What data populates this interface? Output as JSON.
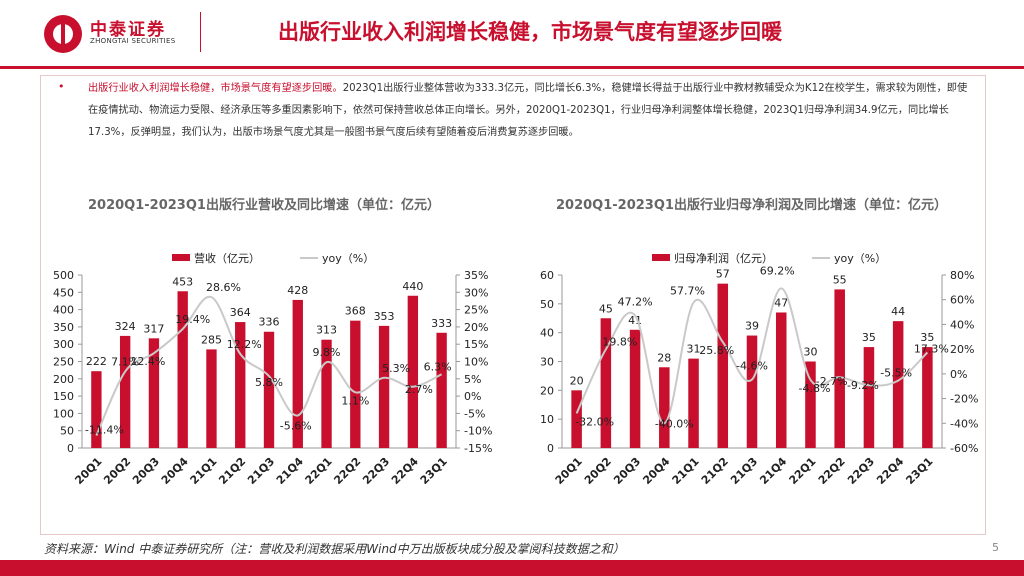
{
  "header": {
    "company_cn": "中泰证券",
    "company_en": "ZHONGTAI SECURITIES",
    "title": "出版行业收入利润增长稳健，市场景气度有望逐步回暖"
  },
  "summary": {
    "highlight": "出版行业收入利润增长稳健，市场景气度有望逐步回暖。",
    "body": "2023Q1出版行业整体营收为333.3亿元，同比增长6.3%，稳健增长得益于出版行业中教材教辅受众为K12在校学生，需求较为刚性，即使在疫情扰动、物流运力受限、经济承压等多重因素影响下，依然可保持营收总体正向增长。另外，2020Q1-2023Q1，行业归母净利润整体增长稳健，2023Q1归母净利润34.9亿元，同比增长17.3%，反弹明显，我们认为，出版市场景气度尤其是一般图书景气度后续有望随着疫后消费复苏逐步回暖。"
  },
  "chart_data": [
    {
      "type": "bar",
      "title": "2020Q1-2023Q1出版行业营收及同比增速（单位：亿元）",
      "categories": [
        "20Q1",
        "20Q2",
        "20Q3",
        "20Q4",
        "21Q1",
        "21Q2",
        "21Q3",
        "21Q4",
        "22Q1",
        "22Q2",
        "22Q3",
        "22Q4",
        "23Q1"
      ],
      "bar_series": {
        "name": "营收（亿元）",
        "values": [
          222,
          324,
          317,
          453,
          285,
          364,
          336,
          428,
          313,
          368,
          353,
          440,
          333
        ],
        "labels": [
          "222",
          "324",
          "317",
          "453",
          "285",
          "364",
          "336",
          "428",
          "313",
          "368",
          "353",
          "440",
          "333"
        ]
      },
      "line_series": {
        "name": "yoy（%）",
        "values": [
          -11.4,
          7.1,
          12.4,
          19.4,
          28.6,
          12.2,
          5.8,
          -5.6,
          9.8,
          1.1,
          5.3,
          2.7,
          6.3
        ],
        "labels": [
          "-11.4%",
          "7.1%",
          "12.4%",
          "19.4%",
          "28.6%",
          "12.2%",
          "5.8%",
          "-5.6%",
          "9.8%",
          "1.1%",
          "5.3%",
          "2.7%",
          "6.3%"
        ]
      },
      "ylim_left": [
        0,
        500
      ],
      "ylim_right": [
        -15,
        35
      ],
      "left_ticks": [
        "0",
        "50",
        "100",
        "150",
        "200",
        "250",
        "300",
        "350",
        "400",
        "450",
        "500"
      ],
      "right_ticks": [
        "-15%",
        "-10%",
        "-5%",
        "0%",
        "5%",
        "10%",
        "15%",
        "20%",
        "25%",
        "30%",
        "35%"
      ],
      "bar_color": "#c8102e",
      "line_color": "#c9c9c9"
    },
    {
      "type": "bar",
      "title": "2020Q1-2023Q1出版行业归母净利润及同比增速（单位：亿元）",
      "categories": [
        "20Q1",
        "20Q2",
        "20Q3",
        "20Q4",
        "21Q1",
        "21Q2",
        "21Q3",
        "21Q4",
        "22Q1",
        "22Q2",
        "22Q3",
        "22Q4",
        "23Q1"
      ],
      "bar_series": {
        "name": "归母净利润（亿元）",
        "values": [
          20,
          45,
          41,
          28,
          31,
          57,
          39,
          47,
          30,
          55,
          35,
          44,
          35
        ],
        "labels": [
          "20",
          "45",
          "41",
          "28",
          "31",
          "57",
          "39",
          "47",
          "30",
          "55",
          "35",
          "44",
          "35"
        ]
      },
      "line_series": {
        "name": "yoy（%）",
        "values": [
          -32.0,
          19.8,
          47.2,
          -40.0,
          57.7,
          25.8,
          -4.6,
          69.2,
          -4.8,
          -2.7,
          -9.2,
          -5.5,
          17.3
        ],
        "labels": [
          "-32.0%",
          "19.8%",
          "47.2%",
          "-40.0%",
          "57.7%",
          "25.8%",
          "-4.6%",
          "69.2%",
          "-4.8%",
          "-2.7%",
          "-9.2%",
          "-5.5%",
          "17.3%"
        ]
      },
      "ylim_left": [
        0,
        60
      ],
      "ylim_right": [
        -60,
        80
      ],
      "left_ticks": [
        "0",
        "10",
        "20",
        "30",
        "40",
        "50",
        "60"
      ],
      "right_ticks": [
        "-60%",
        "-40%",
        "-20%",
        "0%",
        "20%",
        "40%",
        "60%",
        "80%"
      ],
      "bar_color": "#c8102e",
      "line_color": "#c9c9c9"
    }
  ],
  "footer": {
    "source": "资料来源：Wind 中泰证券研究所（注：营收及利润数据采用Wind中万出版板块成分股及掌阅科技数据之和）",
    "page": "5"
  }
}
